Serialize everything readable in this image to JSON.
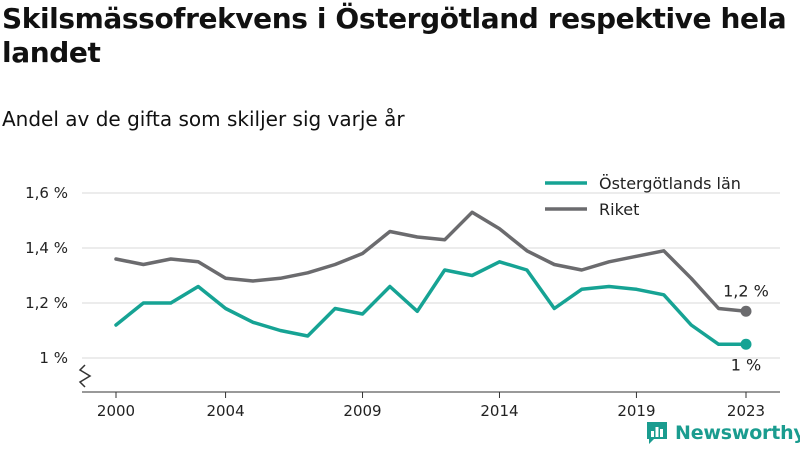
{
  "title": "Skilsmässofrekvens i Östergötland respektive hela landet",
  "subtitle": "Andel av de gifta som skiljer sig varje år",
  "brand": {
    "name": "Newsworthy",
    "logo_icon": "bar-chart-logo-icon",
    "color": "#1a9c8f"
  },
  "chart_data": {
    "type": "line",
    "x": [
      2000,
      2001,
      2002,
      2003,
      2004,
      2005,
      2006,
      2007,
      2008,
      2009,
      2010,
      2011,
      2012,
      2013,
      2014,
      2015,
      2016,
      2017,
      2018,
      2019,
      2020,
      2021,
      2022,
      2023
    ],
    "x_ticks": [
      "2000",
      "2004",
      "2009",
      "2014",
      "2019",
      "2023"
    ],
    "y_ticks": [
      "1,6 %",
      "1,4 %",
      "1,2 %",
      "1 %"
    ],
    "ylim": [
      1.0,
      1.6
    ],
    "y_break": true,
    "grid": true,
    "legend_position": "top-right",
    "series": [
      {
        "name": "Östergötlands län",
        "color": "#16a394",
        "values": [
          1.12,
          1.2,
          1.2,
          1.26,
          1.18,
          1.13,
          1.1,
          1.08,
          1.18,
          1.16,
          1.26,
          1.17,
          1.32,
          1.3,
          1.35,
          1.32,
          1.18,
          1.25,
          1.26,
          1.25,
          1.23,
          1.12,
          1.05,
          1.05
        ],
        "end_label": "1 %"
      },
      {
        "name": "Riket",
        "color": "#6b6b6e",
        "values": [
          1.36,
          1.34,
          1.36,
          1.35,
          1.29,
          1.28,
          1.29,
          1.31,
          1.34,
          1.38,
          1.46,
          1.44,
          1.43,
          1.53,
          1.47,
          1.39,
          1.34,
          1.32,
          1.35,
          1.37,
          1.39,
          1.29,
          1.18,
          1.17
        ],
        "end_label": "1,2 %"
      }
    ]
  }
}
